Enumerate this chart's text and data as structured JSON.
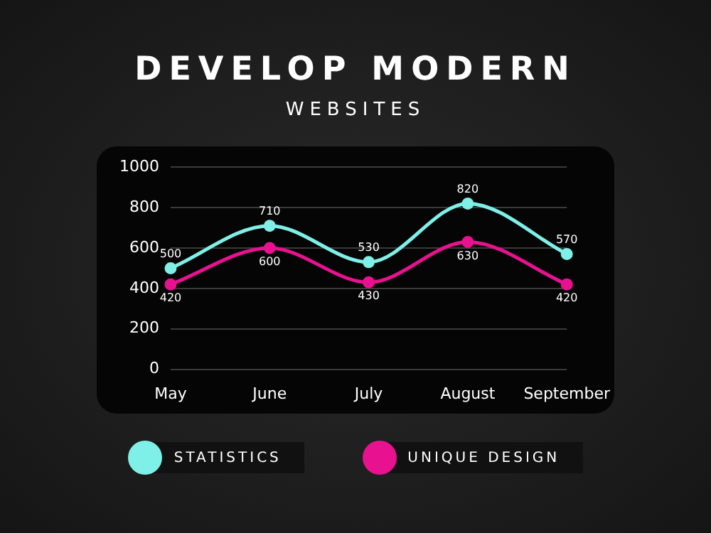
{
  "chart_data": {
    "type": "line",
    "title": "DEVELOP MODERN",
    "subtitle": "WEBSITES",
    "categories": [
      "May",
      "June",
      "July",
      "August",
      "September"
    ],
    "series": [
      {
        "name": "STATISTICS",
        "color": "#7ef0e8",
        "values": [
          500,
          710,
          530,
          820,
          570
        ]
      },
      {
        "name": "UNIQUE DESIGN",
        "color": "#e8118f",
        "values": [
          420,
          600,
          430,
          630,
          420
        ]
      }
    ],
    "ylim": [
      0,
      1000
    ],
    "yticks": [
      0,
      200,
      400,
      600,
      800,
      1000
    ],
    "grid": "y",
    "legend": "bottom",
    "marker": "circle",
    "line_style": "solid",
    "data_labels": true
  }
}
